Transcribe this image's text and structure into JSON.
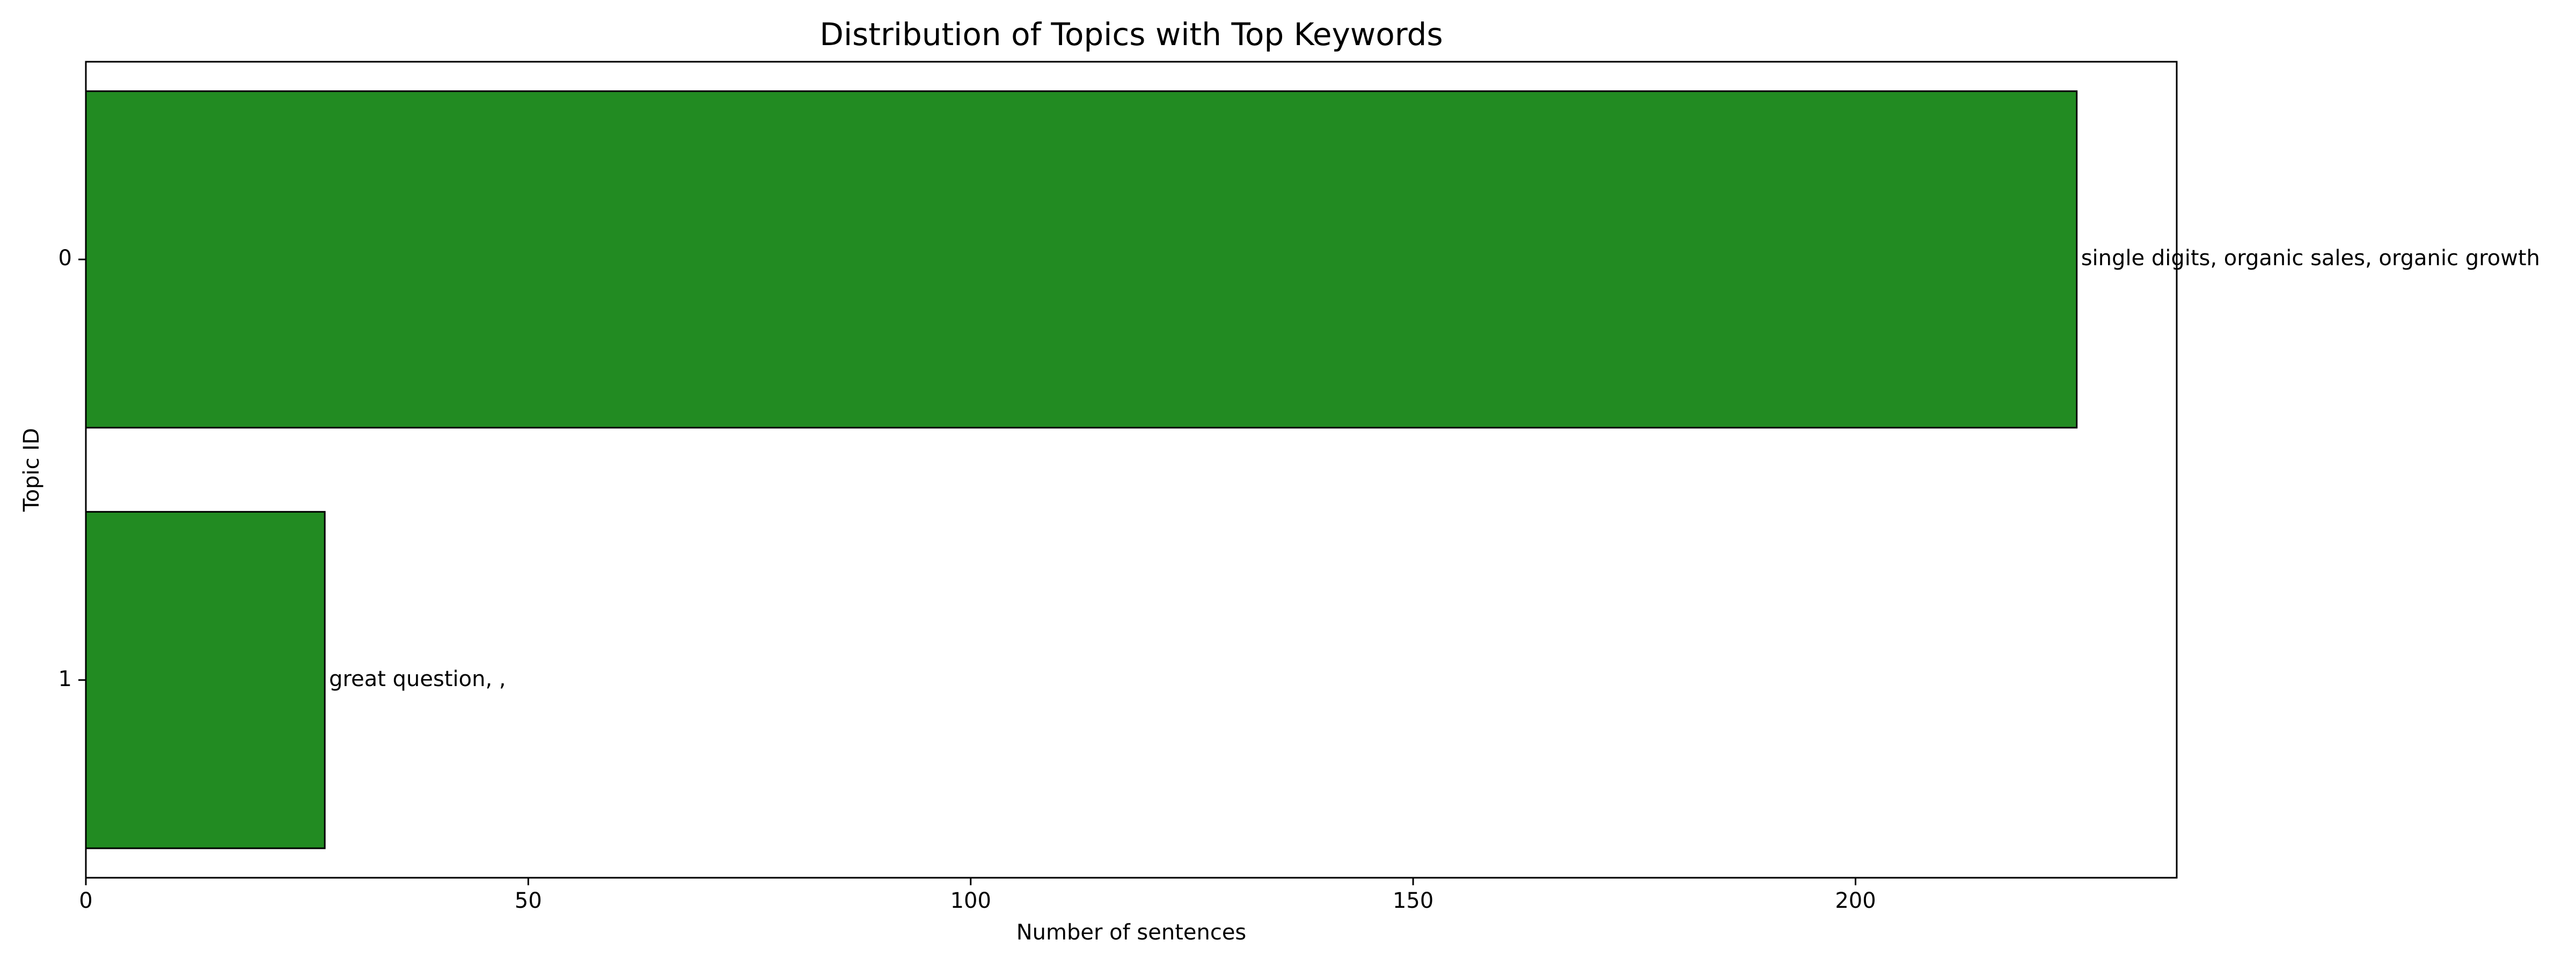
{
  "chart_data": {
    "type": "bar",
    "orientation": "horizontal",
    "title": "Distribution of Topics with Top Keywords",
    "xlabel": "Number of sentences",
    "ylabel": "Topic ID",
    "categories": [
      "0",
      "1"
    ],
    "values": [
      225,
      27
    ],
    "bar_labels": [
      "single digits, organic sales, organic growth",
      "great question, ,"
    ],
    "xlim": [
      0,
      236.3
    ],
    "xticks": [
      0,
      50,
      100,
      150,
      200
    ],
    "grid": false,
    "legend": "none",
    "colors": {
      "bar_fill": "#228b22",
      "bar_edge": "#000000"
    }
  }
}
